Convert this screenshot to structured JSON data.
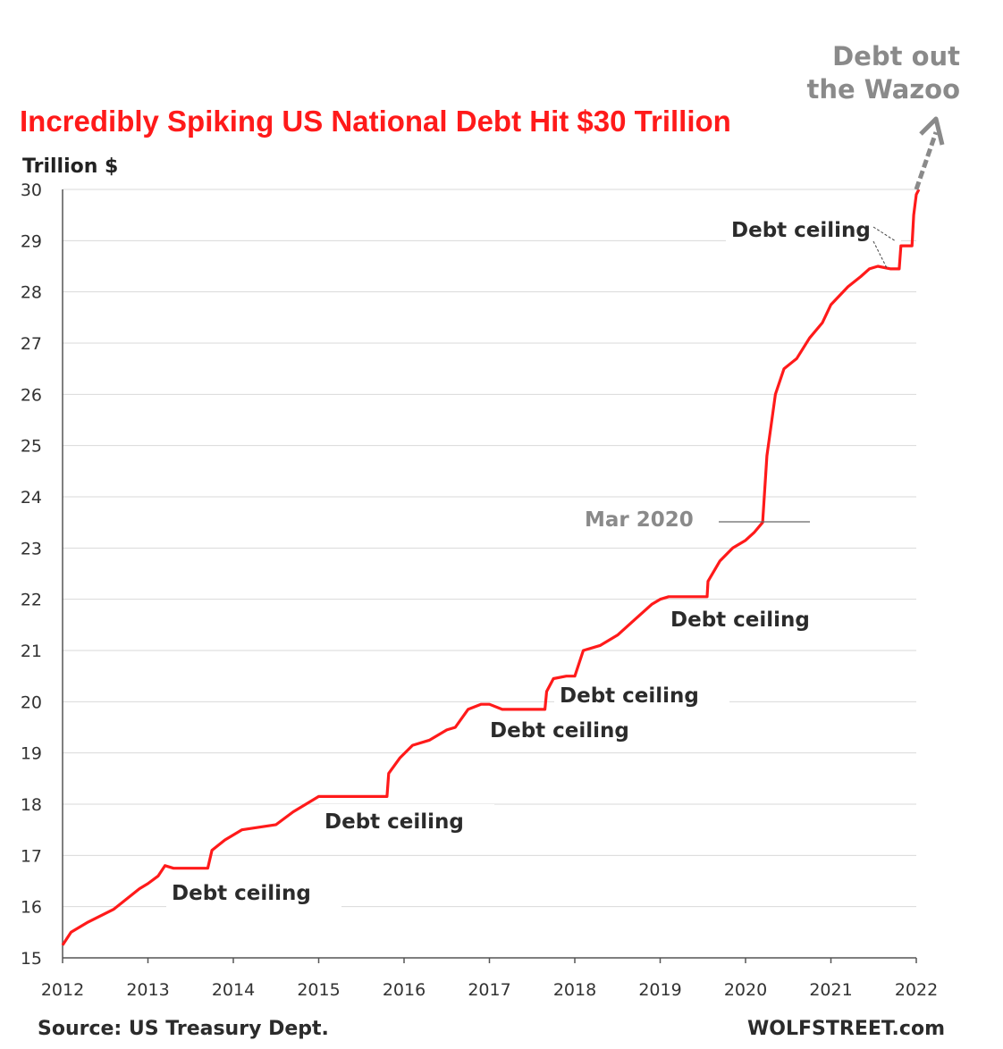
{
  "chart_data": {
    "type": "line",
    "title": "Incredibly Spiking US National Debt Hit $30 Trillion",
    "ylabel": "Trillion $",
    "ylim": [
      15,
      30
    ],
    "xlim": [
      2012,
      2022
    ],
    "grid": true,
    "y_ticks": [
      "15",
      "16",
      "17",
      "18",
      "19",
      "20",
      "21",
      "22",
      "23",
      "24",
      "25",
      "26",
      "27",
      "28",
      "29",
      "30"
    ],
    "x_ticks": [
      "2012",
      "2013",
      "2014",
      "2015",
      "2016",
      "2017",
      "2018",
      "2019",
      "2020",
      "2021",
      "2022"
    ],
    "series": [
      {
        "color": "#ff1a1a",
        "points": [
          [
            2012.0,
            15.25
          ],
          [
            2012.1,
            15.5
          ],
          [
            2012.3,
            15.7
          ],
          [
            2012.6,
            15.95
          ],
          [
            2012.9,
            16.35
          ],
          [
            2013.0,
            16.45
          ],
          [
            2013.12,
            16.6
          ],
          [
            2013.2,
            16.8
          ],
          [
            2013.3,
            16.75
          ],
          [
            2013.5,
            16.75
          ],
          [
            2013.7,
            16.75
          ],
          [
            2013.75,
            17.1
          ],
          [
            2013.9,
            17.3
          ],
          [
            2014.1,
            17.5
          ],
          [
            2014.3,
            17.55
          ],
          [
            2014.5,
            17.6
          ],
          [
            2014.7,
            17.85
          ],
          [
            2014.9,
            18.05
          ],
          [
            2015.0,
            18.15
          ],
          [
            2015.3,
            18.15
          ],
          [
            2015.6,
            18.15
          ],
          [
            2015.8,
            18.15
          ],
          [
            2015.82,
            18.6
          ],
          [
            2015.95,
            18.9
          ],
          [
            2016.1,
            19.15
          ],
          [
            2016.3,
            19.25
          ],
          [
            2016.5,
            19.45
          ],
          [
            2016.6,
            19.5
          ],
          [
            2016.75,
            19.85
          ],
          [
            2016.9,
            19.95
          ],
          [
            2017.0,
            19.95
          ],
          [
            2017.15,
            19.85
          ],
          [
            2017.4,
            19.85
          ],
          [
            2017.65,
            19.85
          ],
          [
            2017.67,
            20.2
          ],
          [
            2017.75,
            20.45
          ],
          [
            2017.9,
            20.5
          ],
          [
            2018.0,
            20.5
          ],
          [
            2018.1,
            21.0
          ],
          [
            2018.3,
            21.1
          ],
          [
            2018.5,
            21.3
          ],
          [
            2018.7,
            21.6
          ],
          [
            2018.9,
            21.9
          ],
          [
            2019.0,
            22.0
          ],
          [
            2019.1,
            22.05
          ],
          [
            2019.35,
            22.05
          ],
          [
            2019.55,
            22.05
          ],
          [
            2019.56,
            22.35
          ],
          [
            2019.7,
            22.75
          ],
          [
            2019.85,
            23.0
          ],
          [
            2020.0,
            23.15
          ],
          [
            2020.1,
            23.3
          ],
          [
            2020.2,
            23.5
          ],
          [
            2020.25,
            24.8
          ],
          [
            2020.35,
            26.0
          ],
          [
            2020.45,
            26.5
          ],
          [
            2020.6,
            26.7
          ],
          [
            2020.75,
            27.1
          ],
          [
            2020.9,
            27.4
          ],
          [
            2021.0,
            27.75
          ],
          [
            2021.2,
            28.1
          ],
          [
            2021.35,
            28.3
          ],
          [
            2021.45,
            28.45
          ],
          [
            2021.55,
            28.5
          ],
          [
            2021.7,
            28.45
          ],
          [
            2021.8,
            28.45
          ],
          [
            2021.82,
            28.9
          ],
          [
            2021.95,
            28.9
          ],
          [
            2021.97,
            29.5
          ],
          [
            2022.0,
            29.9
          ],
          [
            2022.03,
            30.0
          ]
        ]
      }
    ],
    "annotations": [
      "Debt ceiling",
      "Debt ceiling",
      "Debt ceiling",
      "Debt ceiling",
      "Debt ceiling",
      "Debt ceiling",
      "Mar 2020",
      "Debt out",
      "the Wazoo"
    ],
    "source": "Source: US Treasury Dept.",
    "brand": "WOLFSTREET.com",
    "colors": {
      "line": "#ff1a1a",
      "title": "#ff1a1a",
      "annotation_gray": "#8a8a8a"
    }
  }
}
